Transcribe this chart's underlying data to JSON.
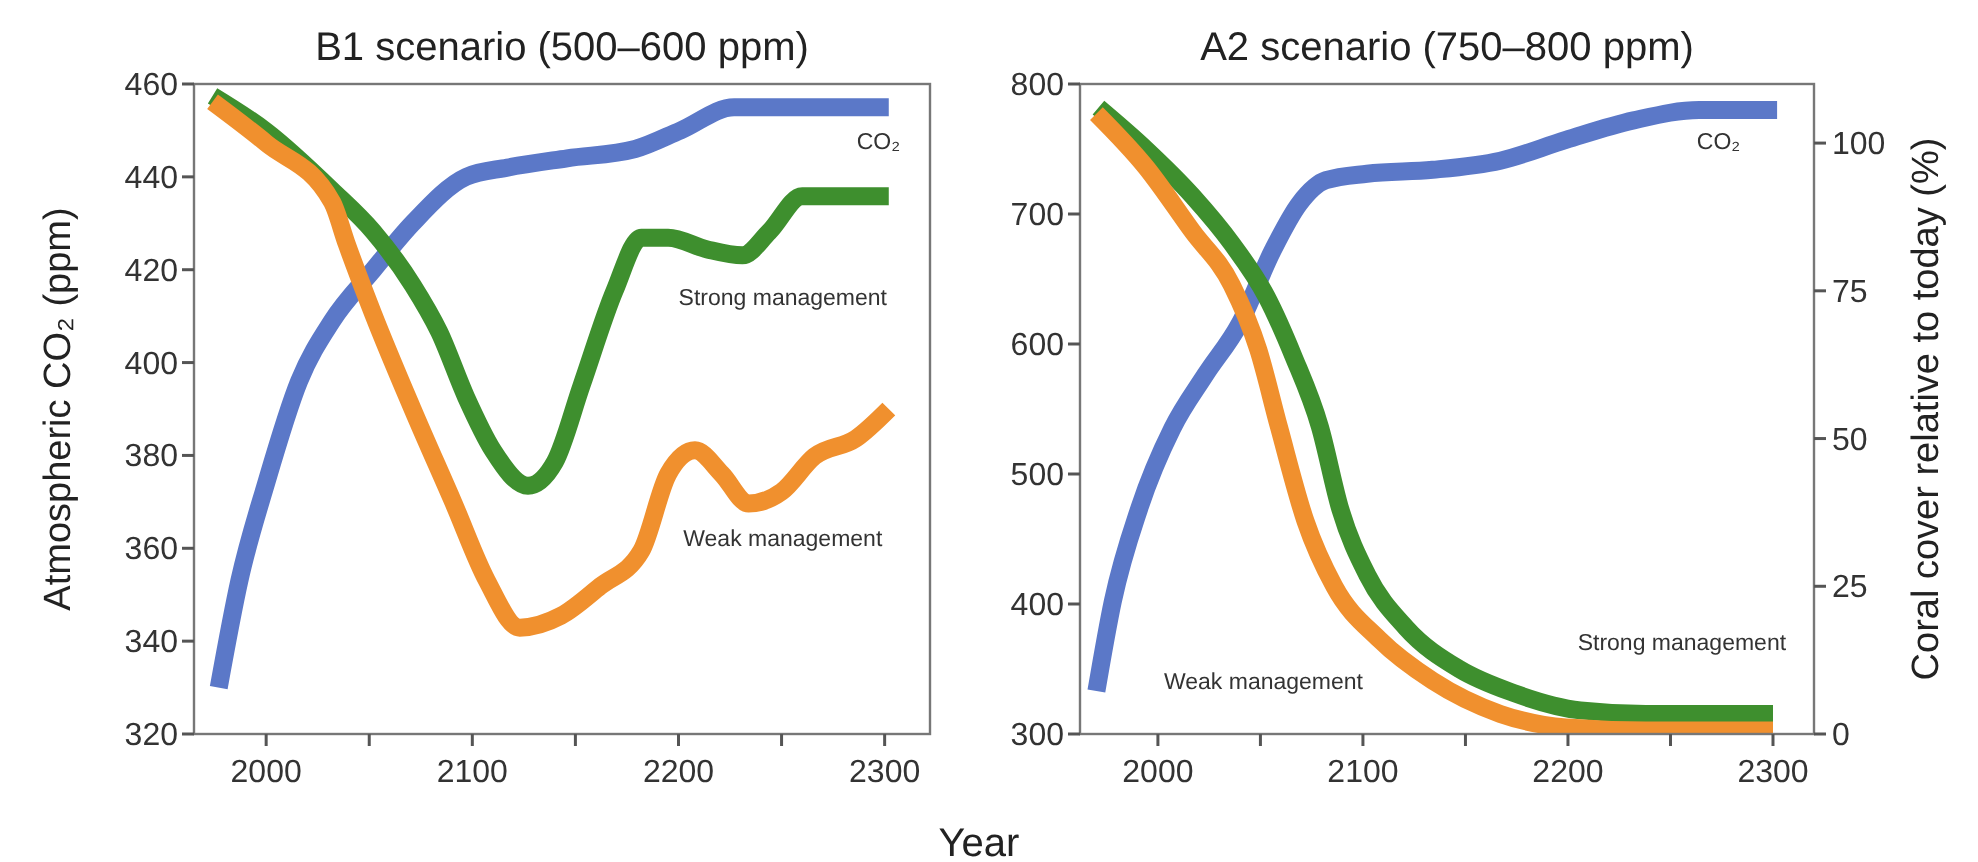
{
  "chart_data": [
    {
      "type": "line",
      "title": "B1 scenario (500–600 ppm)",
      "xlabel": "Year",
      "ylabel": "Atmospheric CO₂ (ppm)",
      "xlim": [
        1965,
        2322
      ],
      "xticks": [
        2000,
        {
          "value": 2050,
          "label": null
        },
        2100,
        {
          "value": 2150,
          "label": null
        },
        2200,
        {
          "value": 2250,
          "label": null
        },
        2300
      ],
      "ylim": [
        320,
        460
      ],
      "yticks": [
        320,
        340,
        360,
        380,
        400,
        420,
        440,
        460
      ],
      "y2lim": [
        0,
        110
      ],
      "tick_labels": "xy",
      "grid": false,
      "line_style": "solid",
      "marker": "none",
      "series": [
        {
          "name": "CO₂",
          "color": "#5b78c8",
          "x": [
            1977,
            1987,
            2000,
            2016,
            2032,
            2052,
            2071,
            2097,
            2117,
            2146,
            2179,
            2201,
            2227,
            2244,
            2302
          ],
          "values": [
            330,
            353,
            374,
            396,
            409,
            420,
            430,
            440,
            442,
            444,
            446,
            450,
            455,
            455,
            455
          ]
        },
        {
          "name": "Strong management",
          "color": "#3e8f2e",
          "axis": "y2",
          "x": [
            1974,
            2000,
            2032,
            2052,
            2071,
            2084,
            2097,
            2110,
            2127,
            2140,
            2153,
            2169,
            2182,
            2195,
            2214,
            2231,
            2244,
            2260,
            2279,
            2302
          ],
          "values": [
            108,
            102,
            92,
            85,
            76,
            68,
            57,
            48,
            42,
            46,
            59,
            75,
            84,
            84,
            82,
            81,
            85,
            91,
            91,
            91
          ]
        },
        {
          "name": "Weak management",
          "color": "#f0902e",
          "axis": "y2",
          "x": [
            1974,
            2000,
            2032,
            2039,
            2052,
            2071,
            2091,
            2107,
            2123,
            2143,
            2162,
            2182,
            2195,
            2208,
            2221,
            2234,
            2250,
            2266,
            2286,
            2302
          ],
          "values": [
            107,
            100,
            90,
            83,
            71,
            55,
            39,
            26,
            18,
            20,
            25,
            31,
            44,
            48,
            44,
            39,
            41,
            47,
            50,
            55
          ]
        }
      ]
    },
    {
      "type": "line",
      "title": "A2 scenario (750–800 ppm)",
      "y2label": "Coral cover relative to today (%)",
      "xlim": [
        1962,
        2320
      ],
      "xticks": [
        2000,
        {
          "value": 2050,
          "label": null
        },
        2100,
        {
          "value": 2150,
          "label": null
        },
        2200,
        {
          "value": 2250,
          "label": null
        },
        2300
      ],
      "ylim": [
        300,
        800
      ],
      "yticks": [
        300,
        400,
        500,
        600,
        700,
        800
      ],
      "y2lim": [
        0,
        110
      ],
      "y2ticks": [
        0,
        25,
        50,
        75,
        100
      ],
      "grid": false,
      "line_style": "solid",
      "marker": "none",
      "series": [
        {
          "name": "CO₂",
          "color": "#5b78c8",
          "x": [
            1970,
            1978,
            1991,
            2007,
            2023,
            2040,
            2056,
            2069,
            2082,
            2102,
            2134,
            2167,
            2199,
            2232,
            2264,
            2302
          ],
          "values": [
            333,
            402,
            474,
            535,
            576,
            616,
            672,
            708,
            726,
            731,
            734,
            741,
            757,
            772,
            780,
            780
          ]
        },
        {
          "name": "Strong management",
          "color": "#3e8f2e",
          "axis": "y2",
          "x": [
            1971,
            1994,
            2017,
            2036,
            2053,
            2066,
            2079,
            2089,
            2102,
            2121,
            2147,
            2173,
            2206,
            2238,
            2300
          ],
          "values": [
            106,
            99,
            91,
            83,
            74,
            64,
            52,
            38,
            27,
            18,
            11,
            7,
            4,
            3.4,
            3.4
          ]
        },
        {
          "name": "Weak management",
          "color": "#f0902e",
          "axis": "y2",
          "x": [
            1970,
            1994,
            2017,
            2036,
            2049,
            2059,
            2072,
            2086,
            2108,
            2134,
            2167,
            2199,
            2238,
            2300
          ],
          "values": [
            105,
            96,
            85,
            76,
            65,
            52,
            36,
            25,
            16,
            9,
            3.4,
            1.1,
            0.6,
            0.6
          ]
        }
      ]
    }
  ]
}
